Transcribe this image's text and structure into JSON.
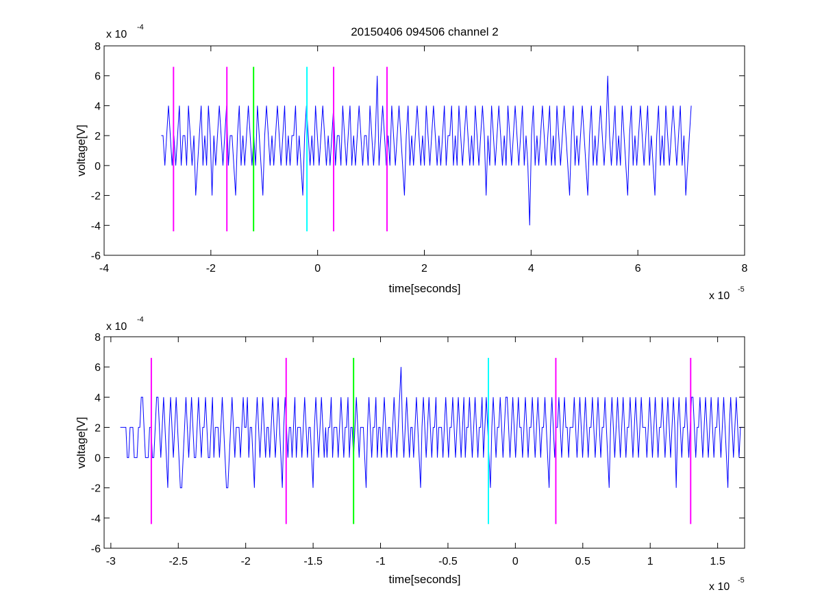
{
  "figure_title": "20150406 094506 channel 2",
  "chart_data": [
    {
      "type": "line",
      "title": "20150406 094506 channel 2",
      "xlabel": "time[seconds]",
      "ylabel": "voltage[V]",
      "x_exponent_label": "x 10",
      "x_exponent": "-5",
      "y_exponent_label": "x 10",
      "y_exponent": "-4",
      "xlim": [
        -4,
        8
      ],
      "ylim": [
        -6,
        8
      ],
      "xticks": [
        -4,
        -2,
        0,
        2,
        4,
        6,
        8
      ],
      "xtick_labels": [
        "-4",
        "-2",
        "0",
        "2",
        "4",
        "6",
        "8"
      ],
      "yticks": [
        -6,
        -4,
        -2,
        0,
        2,
        4,
        6,
        8
      ],
      "ytick_labels": [
        "-6",
        "-4",
        "-2",
        "0",
        "2",
        "4",
        "6",
        "8"
      ],
      "grid": false,
      "series": [
        {
          "color": "#0000ff",
          "x_range": [
            -2.93,
            7.0
          ],
          "dt": 0.055,
          "values": [
            2,
            2,
            0,
            2,
            4,
            2,
            0,
            2,
            0,
            2,
            4,
            0,
            2,
            2,
            0,
            4,
            2,
            0,
            2,
            -2,
            0,
            2,
            4,
            0,
            2,
            0,
            4,
            2,
            -2,
            2,
            0,
            2,
            4,
            2,
            0,
            2,
            4,
            0,
            2,
            2,
            0,
            -2,
            2,
            4,
            0,
            2,
            0,
            2,
            4,
            2,
            0,
            2,
            0,
            4,
            2,
            0,
            -2,
            2,
            4,
            2,
            0,
            2,
            0,
            2,
            4,
            2,
            0,
            2,
            4,
            0,
            2,
            0,
            2,
            2,
            4,
            0,
            2,
            0,
            -2,
            2,
            4,
            2,
            0,
            2,
            0,
            4,
            2,
            0,
            2,
            4,
            2,
            0,
            2,
            0,
            2,
            4,
            0,
            2,
            2,
            0,
            4,
            2,
            0,
            2,
            4,
            0,
            2,
            0,
            2,
            4,
            2,
            0,
            2,
            2,
            0,
            4,
            2,
            0,
            2,
            6,
            0,
            2,
            4,
            2,
            0,
            2,
            0,
            4,
            2,
            0,
            2,
            4,
            2,
            0,
            -2,
            2,
            4,
            0,
            2,
            0,
            2,
            4,
            2,
            0,
            2,
            0,
            4,
            2,
            0,
            2,
            4,
            2,
            0,
            2,
            0,
            2,
            4,
            0,
            2,
            2,
            4,
            0,
            2,
            0,
            4,
            2,
            0,
            2,
            4,
            2,
            0,
            2,
            0,
            4,
            2,
            0,
            2,
            4,
            2,
            -2,
            2,
            0,
            4,
            2,
            0,
            2,
            4,
            2,
            0,
            2,
            0,
            4,
            2,
            0,
            2,
            4,
            2,
            0,
            2,
            4,
            0,
            2,
            0,
            -4,
            2,
            4,
            0,
            2,
            0,
            2,
            4,
            2,
            0,
            2,
            4,
            0,
            2,
            0,
            4,
            2,
            0,
            2,
            4,
            2,
            0,
            -2,
            2,
            4,
            0,
            2,
            0,
            2,
            4,
            2,
            0,
            -2,
            2,
            4,
            0,
            2,
            0,
            2,
            4,
            2,
            0,
            2,
            6,
            2,
            0,
            2,
            4,
            0,
            2,
            0,
            4,
            2,
            0,
            -2,
            2,
            4,
            0,
            2,
            0,
            2,
            4,
            2,
            0,
            2,
            4,
            0,
            2,
            0,
            -2,
            2,
            4,
            0,
            2,
            0,
            4,
            2,
            0,
            2,
            4,
            2,
            0,
            2,
            4,
            0,
            2,
            -2,
            0,
            2,
            4
          ]
        }
      ],
      "markers": [
        {
          "x": -2.7,
          "color": "#ff00ff"
        },
        {
          "x": -1.7,
          "color": "#ff00ff"
        },
        {
          "x": -1.2,
          "color": "#00ff00"
        },
        {
          "x": -0.2,
          "color": "#00ffff"
        },
        {
          "x": 0.3,
          "color": "#ff00ff"
        },
        {
          "x": 1.3,
          "color": "#ff00ff"
        }
      ],
      "marker_range": [
        -4.4,
        6.6
      ]
    },
    {
      "type": "line",
      "title": "",
      "xlabel": "time[seconds]",
      "ylabel": "voltage[V]",
      "x_exponent_label": "x 10",
      "x_exponent": "-5",
      "y_exponent_label": "x 10",
      "y_exponent": "-4",
      "xlim": [
        -3.05,
        1.7
      ],
      "ylim": [
        -6,
        8
      ],
      "xticks": [
        -3,
        -2.5,
        -2,
        -1.5,
        -1,
        -0.5,
        0,
        0.5,
        1,
        1.5
      ],
      "xtick_labels": [
        "-3",
        "-2.5",
        "-2",
        "-1.5",
        "-1",
        "-0.5",
        "0",
        "0.5",
        "1",
        "1.5"
      ],
      "yticks": [
        -6,
        -4,
        -2,
        0,
        2,
        4,
        6,
        8
      ],
      "ytick_labels": [
        "-6",
        "-4",
        "-2",
        "0",
        "2",
        "4",
        "6",
        "8"
      ],
      "grid": false,
      "series": [
        {
          "color": "#0000ff",
          "x_range": [
            -2.93,
            1.69
          ],
          "dt": 0.01,
          "values": [
            2,
            2,
            2,
            2,
            2,
            0,
            0,
            2,
            2,
            2,
            0,
            0,
            0,
            2,
            2,
            4,
            4,
            2,
            0,
            0,
            0,
            2,
            2,
            0,
            0,
            2,
            4,
            4,
            2,
            0,
            2,
            4,
            2,
            0,
            -2,
            2,
            4,
            2,
            0,
            2,
            4,
            2,
            0,
            -2,
            -2,
            0,
            2,
            4,
            2,
            0,
            2,
            4,
            2,
            0,
            0,
            2,
            4,
            2,
            0,
            2,
            2,
            4,
            2,
            0,
            0,
            2,
            4,
            0,
            2,
            2,
            2,
            0,
            2,
            4,
            2,
            0,
            -2,
            -2,
            0,
            2,
            4,
            2,
            0,
            2,
            2,
            2,
            0,
            2,
            4,
            2,
            2,
            4,
            0,
            2,
            2,
            0,
            -2,
            2,
            4,
            2,
            0,
            2,
            4,
            2,
            0,
            2,
            2,
            0,
            2,
            4,
            2,
            0,
            2,
            4,
            2,
            0,
            -2,
            2,
            4,
            2,
            0,
            2,
            2,
            0,
            2,
            4,
            0,
            2,
            2,
            2,
            0,
            2,
            4,
            2,
            0,
            2,
            2,
            0,
            -2,
            2,
            4,
            2,
            0,
            2,
            4,
            2,
            0,
            2,
            0,
            2,
            2,
            4,
            0,
            2,
            2,
            2,
            0,
            2,
            4,
            2,
            0,
            2,
            2,
            4,
            0,
            2,
            2,
            0,
            2,
            4,
            2,
            0,
            2,
            2,
            2,
            0,
            -2,
            2,
            4,
            2,
            0,
            2,
            2,
            4,
            0,
            2,
            2,
            0,
            2,
            4,
            2,
            0,
            2,
            2,
            0,
            2,
            4,
            2,
            0,
            2,
            4,
            6,
            2,
            0,
            2,
            4,
            2,
            0,
            2,
            2,
            0,
            2,
            4,
            2,
            0,
            -2,
            2,
            4,
            2,
            0,
            2,
            4,
            2,
            0,
            2,
            2,
            4,
            0,
            2,
            2,
            2,
            0,
            2,
            4,
            2,
            0,
            2,
            2,
            4,
            2,
            0,
            2,
            4,
            2,
            0,
            2,
            4,
            0,
            2,
            2,
            4,
            2,
            0,
            2,
            4,
            2,
            0,
            2,
            2,
            4,
            0,
            2,
            4,
            2,
            0,
            -2,
            2,
            4,
            2,
            0,
            2,
            2,
            4,
            2,
            0,
            2,
            4,
            4,
            2,
            0,
            2,
            4,
            2,
            0,
            2,
            4,
            2,
            2,
            0,
            2,
            4,
            2,
            0,
            2,
            2,
            4,
            2,
            0,
            2,
            4,
            2,
            0,
            2,
            2,
            4,
            2,
            0,
            -2,
            2,
            4,
            2,
            0,
            2,
            2,
            4,
            2,
            0,
            2,
            4,
            2,
            2,
            0,
            2,
            2,
            2,
            4,
            2,
            0,
            2,
            4,
            2,
            0,
            2,
            4,
            2,
            0,
            2,
            2,
            4,
            2,
            0,
            2,
            4,
            2,
            0,
            2,
            2,
            4,
            2,
            0,
            -2,
            2,
            4,
            2,
            0,
            2,
            4,
            2,
            0,
            2,
            4,
            2,
            0,
            2,
            2,
            4,
            2,
            0,
            2,
            4,
            2,
            0,
            2,
            4,
            2,
            2,
            2,
            0,
            2,
            4,
            2,
            0,
            2,
            4,
            2,
            0,
            2,
            2,
            4,
            2,
            0,
            2,
            4,
            2,
            0,
            2,
            4,
            2,
            -2,
            2,
            4,
            2,
            0,
            2,
            2,
            4,
            2,
            0,
            2,
            4,
            4,
            2,
            0,
            2,
            2,
            4,
            2,
            0,
            2,
            4,
            2,
            0,
            2,
            4,
            2,
            0,
            2,
            2,
            4,
            2,
            0,
            2,
            4,
            2,
            0,
            -2,
            2,
            4,
            2,
            0,
            2,
            4,
            2,
            0,
            2,
            2,
            2
          ]
        }
      ],
      "markers": [
        {
          "x": -2.7,
          "color": "#ff00ff"
        },
        {
          "x": -1.7,
          "color": "#ff00ff"
        },
        {
          "x": -1.2,
          "color": "#00ff00"
        },
        {
          "x": -0.2,
          "color": "#00ffff"
        },
        {
          "x": 0.3,
          "color": "#ff00ff"
        },
        {
          "x": 1.3,
          "color": "#ff00ff"
        }
      ],
      "marker_range": [
        -4.4,
        6.6
      ]
    }
  ]
}
